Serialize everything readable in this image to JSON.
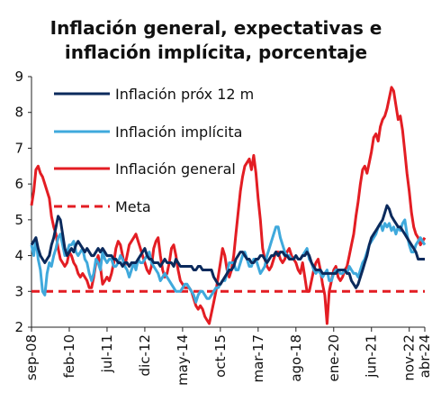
{
  "chart_data": {
    "type": "line",
    "title": [
      "Inflación general, expectativas e",
      "inflación implícita, porcentaje"
    ],
    "xlabel": "",
    "ylabel": "",
    "x_tick_labels": [
      "sep-08",
      "feb-10",
      "jul-11",
      "dic-12",
      "may-14",
      "oct-15",
      "mar-17",
      "ago-18",
      "ene-20",
      "jun-21",
      "nov-22",
      "abr-24"
    ],
    "x_start_label": "sep-08",
    "x_step_months": 1,
    "ylim": [
      2,
      9
    ],
    "yticks": [
      2,
      3,
      4,
      5,
      6,
      7,
      8,
      9
    ],
    "legend": {
      "placement": "top-left",
      "entries": [
        "Inflación próx 12 m",
        "Inflación implícita",
        "Inflación general",
        "Meta"
      ]
    },
    "series": [
      {
        "name": "Inflación próx 12 m",
        "color": "#0b2a5c",
        "style": "solid",
        "values": [
          4.3,
          4.4,
          4.5,
          4.2,
          4.0,
          3.9,
          3.8,
          3.9,
          4.0,
          4.3,
          4.5,
          4.8,
          5.1,
          5.0,
          4.6,
          4.2,
          4.0,
          4.1,
          4.2,
          4.1,
          4.3,
          4.4,
          4.3,
          4.2,
          4.1,
          4.2,
          4.1,
          4.0,
          4.0,
          4.1,
          4.2,
          4.1,
          4.2,
          4.1,
          4.0,
          4.0,
          4.0,
          3.9,
          3.9,
          3.8,
          3.8,
          3.7,
          3.8,
          3.8,
          3.7,
          3.8,
          3.8,
          3.8,
          3.9,
          4.0,
          4.1,
          4.2,
          4.0,
          3.9,
          3.9,
          3.8,
          3.8,
          3.8,
          3.7,
          3.8,
          3.9,
          3.8,
          3.8,
          3.8,
          3.7,
          3.9,
          3.8,
          3.7,
          3.7,
          3.7,
          3.7,
          3.7,
          3.7,
          3.6,
          3.6,
          3.7,
          3.7,
          3.6,
          3.6,
          3.6,
          3.6,
          3.6,
          3.4,
          3.3,
          3.2,
          3.2,
          3.3,
          3.4,
          3.5,
          3.6,
          3.6,
          3.7,
          3.9,
          4.0,
          4.1,
          4.1,
          4.0,
          3.9,
          3.9,
          3.8,
          3.8,
          3.9,
          3.9,
          4.0,
          4.0,
          3.9,
          3.8,
          3.9,
          4.0,
          4.0,
          4.1,
          4.0,
          4.1,
          4.1,
          4.0,
          4.0,
          3.9,
          3.9,
          3.9,
          4.0,
          3.9,
          3.9,
          4.0,
          4.0,
          4.1,
          4.0,
          3.8,
          3.7,
          3.6,
          3.6,
          3.6,
          3.5,
          3.5,
          3.5,
          3.5,
          3.5,
          3.5,
          3.5,
          3.6,
          3.6,
          3.6,
          3.6,
          3.5,
          3.5,
          3.3,
          3.2,
          3.1,
          3.2,
          3.4,
          3.6,
          3.8,
          4.0,
          4.3,
          4.5,
          4.6,
          4.7,
          4.8,
          4.9,
          5.0,
          5.2,
          5.4,
          5.3,
          5.1,
          5.0,
          4.9,
          4.8,
          4.8,
          4.7,
          4.6,
          4.5,
          4.4,
          4.3,
          4.2,
          4.1,
          3.9,
          3.9,
          3.9,
          3.9
        ]
      },
      {
        "name": "Inflación implícita",
        "color": "#3fa9dc",
        "style": "solid",
        "values": [
          4.3,
          4.0,
          4.5,
          3.9,
          3.6,
          3.0,
          2.9,
          3.5,
          3.8,
          3.7,
          4.0,
          4.2,
          4.5,
          4.6,
          4.3,
          4.0,
          4.1,
          4.3,
          4.3,
          4.4,
          4.1,
          4.0,
          4.1,
          4.2,
          3.9,
          3.8,
          3.5,
          3.3,
          3.5,
          3.9,
          3.8,
          3.6,
          4.1,
          3.9,
          3.8,
          3.9,
          3.9,
          3.7,
          3.7,
          3.8,
          4.0,
          3.9,
          3.7,
          3.6,
          3.4,
          3.6,
          3.8,
          3.6,
          3.9,
          3.8,
          3.8,
          3.9,
          4.0,
          4.1,
          3.8,
          3.7,
          3.6,
          3.5,
          3.3,
          3.4,
          3.5,
          3.4,
          3.3,
          3.2,
          3.1,
          3.0,
          3.0,
          3.0,
          3.1,
          3.2,
          3.2,
          3.1,
          3.0,
          2.9,
          2.7,
          2.9,
          3.0,
          3.0,
          2.9,
          2.8,
          2.8,
          2.9,
          3.0,
          3.1,
          3.1,
          3.2,
          3.3,
          3.3,
          3.5,
          3.8,
          3.8,
          3.8,
          3.6,
          3.6,
          3.8,
          4.0,
          4.1,
          3.9,
          3.7,
          3.7,
          3.9,
          3.9,
          3.7,
          3.5,
          3.6,
          3.7,
          4.0,
          4.2,
          4.4,
          4.6,
          4.8,
          4.8,
          4.5,
          4.3,
          4.1,
          4.0,
          4.0,
          3.9,
          3.9,
          4.0,
          3.9,
          3.9,
          4.0,
          4.1,
          4.2,
          3.9,
          3.8,
          3.6,
          3.5,
          3.6,
          3.5,
          3.4,
          3.5,
          3.6,
          3.3,
          3.3,
          3.5,
          3.6,
          3.6,
          3.5,
          3.5,
          3.6,
          3.5,
          3.7,
          3.6,
          3.5,
          3.5,
          3.4,
          3.6,
          3.8,
          3.9,
          4.1,
          4.3,
          4.4,
          4.5,
          4.6,
          4.8,
          4.9,
          4.7,
          4.9,
          4.8,
          4.9,
          4.7,
          4.8,
          4.6,
          4.8,
          4.7,
          4.9,
          5.0,
          4.6,
          4.3,
          4.1,
          4.1,
          4.3,
          4.4,
          4.5,
          4.4,
          4.3
        ]
      },
      {
        "name": "Inflación general",
        "color": "#e31d23",
        "style": "solid",
        "values": [
          5.4,
          5.8,
          6.4,
          6.5,
          6.3,
          6.2,
          6.0,
          5.8,
          5.6,
          5.1,
          4.8,
          4.6,
          4.2,
          3.9,
          3.8,
          3.7,
          3.8,
          4.1,
          4.0,
          3.8,
          3.7,
          3.5,
          3.4,
          3.5,
          3.4,
          3.3,
          3.1,
          3.1,
          3.4,
          3.8,
          4.0,
          3.7,
          3.2,
          3.3,
          3.4,
          3.3,
          3.5,
          3.8,
          4.2,
          4.4,
          4.3,
          4.0,
          3.7,
          4.0,
          4.3,
          4.4,
          4.5,
          4.6,
          4.4,
          4.2,
          4.0,
          3.8,
          3.6,
          3.5,
          3.7,
          4.2,
          4.4,
          4.5,
          4.0,
          3.6,
          3.4,
          3.5,
          3.8,
          4.2,
          4.3,
          4.0,
          3.6,
          3.3,
          3.2,
          3.1,
          3.1,
          3.1,
          3.0,
          2.8,
          2.6,
          2.5,
          2.6,
          2.5,
          2.3,
          2.2,
          2.1,
          2.4,
          2.7,
          3.0,
          3.4,
          3.8,
          4.2,
          4.0,
          3.6,
          3.4,
          3.6,
          4.0,
          4.6,
          5.2,
          5.8,
          6.2,
          6.5,
          6.6,
          6.7,
          6.4,
          6.8,
          6.3,
          5.6,
          5.0,
          4.2,
          3.9,
          3.7,
          3.6,
          3.7,
          3.9,
          4.1,
          4.1,
          3.9,
          3.8,
          3.9,
          4.1,
          4.2,
          4.0,
          3.9,
          3.8,
          3.6,
          3.5,
          3.8,
          3.4,
          3.0,
          3.0,
          3.3,
          3.6,
          3.8,
          3.9,
          3.6,
          3.2,
          2.9,
          2.1,
          3.0,
          3.3,
          3.6,
          3.7,
          3.4,
          3.3,
          3.4,
          3.6,
          3.7,
          4.0,
          4.3,
          4.6,
          5.1,
          5.5,
          6.0,
          6.4,
          6.5,
          6.3,
          6.6,
          6.9,
          7.3,
          7.4,
          7.2,
          7.6,
          7.8,
          7.9,
          8.1,
          8.4,
          8.7,
          8.6,
          8.2,
          7.8,
          7.9,
          7.5,
          6.9,
          6.3,
          5.8,
          5.2,
          4.8,
          4.6,
          4.5,
          4.3,
          4.4,
          4.5
        ]
      },
      {
        "name": "Meta",
        "color": "#e31d23",
        "style": "dashed",
        "values": [
          3,
          3
        ]
      }
    ]
  }
}
